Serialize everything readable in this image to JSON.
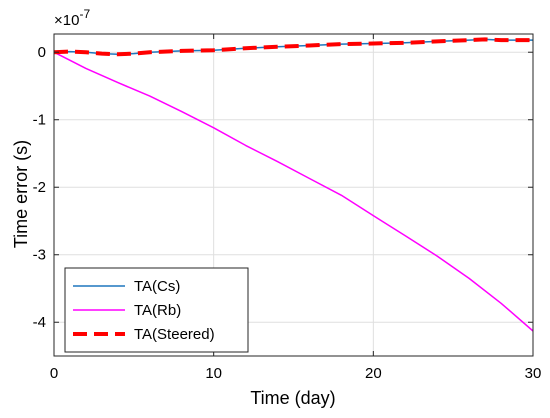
{
  "chart_data": {
    "type": "line",
    "xlabel": "Time (day)",
    "ylabel": "Time error (s)",
    "multiplier_text": "×10",
    "multiplier_exp": "-7",
    "xlim": [
      0,
      30
    ],
    "ylim": [
      -4.5,
      0.27
    ],
    "xticks": [
      0,
      10,
      20,
      30
    ],
    "yticks": [
      0,
      -1,
      -2,
      -3,
      -4
    ],
    "grid": true,
    "legend_position": "bottom-left",
    "colors": {
      "cs": "#1f77bd",
      "rb": "#ff00ff",
      "steered": "#ff0000"
    },
    "series": [
      {
        "name": "TA(Cs)",
        "style": "solid",
        "x": [
          0,
          1,
          2,
          3,
          4,
          5,
          6,
          8,
          10,
          12,
          14,
          16,
          18,
          20,
          22,
          24,
          26,
          27,
          28,
          30
        ],
        "y": [
          0,
          0.01,
          0.0,
          -0.02,
          -0.03,
          -0.02,
          0.0,
          0.02,
          0.03,
          0.06,
          0.08,
          0.1,
          0.12,
          0.13,
          0.14,
          0.16,
          0.18,
          0.19,
          0.18,
          0.18
        ]
      },
      {
        "name": "TA(Rb)",
        "style": "solid",
        "x": [
          0,
          1,
          2,
          4,
          6,
          8,
          10,
          12,
          14,
          16,
          18,
          20,
          22,
          24,
          26,
          28,
          30
        ],
        "y": [
          0,
          -0.12,
          -0.24,
          -0.45,
          -0.65,
          -0.88,
          -1.12,
          -1.38,
          -1.62,
          -1.87,
          -2.12,
          -2.42,
          -2.72,
          -3.02,
          -3.35,
          -3.72,
          -4.13
        ]
      },
      {
        "name": "TA(Steered)",
        "style": "dashed",
        "x": [
          0,
          1,
          2,
          3,
          4,
          5,
          6,
          8,
          10,
          12,
          14,
          16,
          18,
          20,
          22,
          24,
          26,
          27,
          28,
          30
        ],
        "y": [
          0,
          0.01,
          0.0,
          -0.02,
          -0.03,
          -0.02,
          0.0,
          0.02,
          0.03,
          0.06,
          0.08,
          0.1,
          0.12,
          0.13,
          0.14,
          0.16,
          0.18,
          0.19,
          0.18,
          0.18
        ]
      }
    ]
  }
}
